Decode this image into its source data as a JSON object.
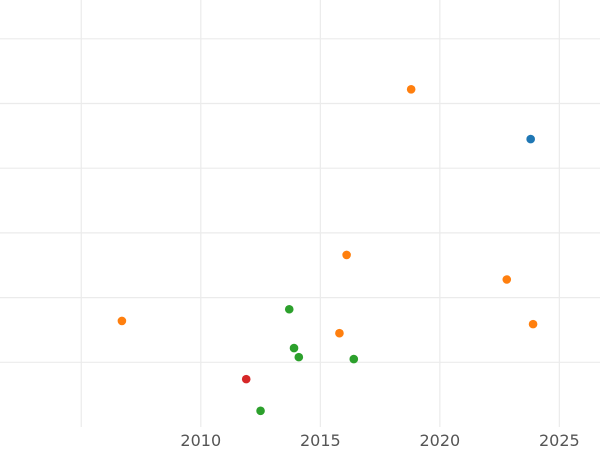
{
  "chart_data": {
    "type": "scatter",
    "title": "",
    "xlabel": "",
    "ylabel": "",
    "xlim": [
      2001.6,
      2026.7
    ],
    "ylim": [
      -1.0,
      5.6
    ],
    "x_ticks": [
      2010,
      2015,
      2020,
      2025
    ],
    "x_tick_labels": [
      "2010",
      "2015",
      "2020",
      "2025"
    ],
    "y_gridlines": [
      0,
      1,
      2,
      3,
      4,
      5
    ],
    "grid": true,
    "legend": "none",
    "series": [
      {
        "color": "#1f77b4",
        "points": [
          {
            "x": 2023.8,
            "y": 3.45
          }
        ]
      },
      {
        "color": "#ff7f0e",
        "points": [
          {
            "x": 2018.8,
            "y": 4.22
          },
          {
            "x": 2016.1,
            "y": 1.66
          },
          {
            "x": 2022.8,
            "y": 1.28
          },
          {
            "x": 2006.7,
            "y": 0.64
          },
          {
            "x": 2015.8,
            "y": 0.45
          },
          {
            "x": 2023.9,
            "y": 0.59
          }
        ]
      },
      {
        "color": "#2ca02c",
        "points": [
          {
            "x": 2013.7,
            "y": 0.82
          },
          {
            "x": 2013.9,
            "y": 0.22
          },
          {
            "x": 2014.1,
            "y": 0.08
          },
          {
            "x": 2016.4,
            "y": 0.05
          },
          {
            "x": 2012.5,
            "y": -0.75
          }
        ]
      },
      {
        "color": "#d62728",
        "points": [
          {
            "x": 2011.9,
            "y": -0.26
          }
        ]
      }
    ]
  }
}
